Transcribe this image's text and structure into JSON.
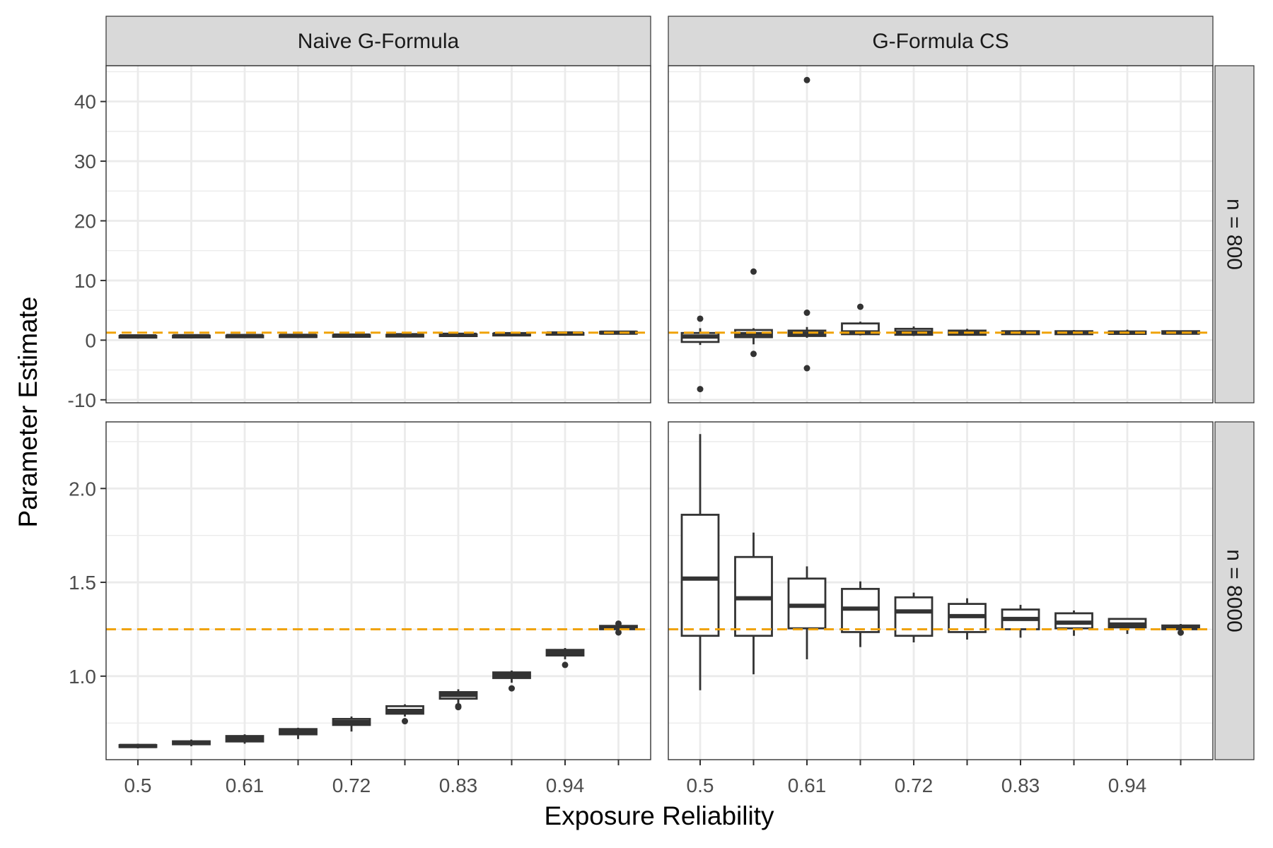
{
  "chart_data": {
    "type": "boxplot",
    "xlabel": "Exposure Reliability",
    "ylabel": "Parameter Estimate",
    "x_categories": [
      0.5,
      0.555,
      0.61,
      0.665,
      0.72,
      0.775,
      0.83,
      0.885,
      0.94,
      0.995
    ],
    "x_tick_labels": [
      "0.5",
      "0.61",
      "0.72",
      "0.83",
      "0.94"
    ],
    "x_tick_label_categories": [
      0,
      2,
      4,
      6,
      8
    ],
    "columns": [
      "Naive G-Formula",
      "G-Formula CS"
    ],
    "rows": [
      "n = 800",
      "n = 8000"
    ],
    "reference_line": {
      "y": 1.25,
      "color": "#f0a30a",
      "style": "dashed"
    },
    "colors": {
      "box_stroke": "#333333",
      "strip_fill": "#d9d9d9",
      "grid": "#ebebeb",
      "reference": "#f0a30a"
    },
    "grid": true,
    "panels": [
      {
        "row": "n = 800",
        "column": "Naive G-Formula",
        "ylim": [
          -10.5,
          46
        ],
        "y_ticks": [
          -10,
          0,
          10,
          20,
          30,
          40
        ],
        "y_tick_labels": [
          "-10",
          "0",
          "10",
          "20",
          "30",
          "40"
        ],
        "boxes": [
          {
            "q1": 0.55,
            "median": 0.63,
            "q3": 0.72,
            "lower_whisker": 0.5,
            "upper_whisker": 0.8,
            "outliers": []
          },
          {
            "q1": 0.6,
            "median": 0.66,
            "q3": 0.75,
            "lower_whisker": 0.55,
            "upper_whisker": 0.85,
            "outliers": []
          },
          {
            "q1": 0.63,
            "median": 0.7,
            "q3": 0.78,
            "lower_whisker": 0.58,
            "upper_whisker": 0.88,
            "outliers": []
          },
          {
            "q1": 0.66,
            "median": 0.73,
            "q3": 0.82,
            "lower_whisker": 0.6,
            "upper_whisker": 0.9,
            "outliers": []
          },
          {
            "q1": 0.7,
            "median": 0.77,
            "q3": 0.86,
            "lower_whisker": 0.64,
            "upper_whisker": 0.95,
            "outliers": []
          },
          {
            "q1": 0.75,
            "median": 0.83,
            "q3": 0.9,
            "lower_whisker": 0.68,
            "upper_whisker": 1.0,
            "outliers": []
          },
          {
            "q1": 0.82,
            "median": 0.9,
            "q3": 0.98,
            "lower_whisker": 0.75,
            "upper_whisker": 1.08,
            "outliers": []
          },
          {
            "q1": 0.92,
            "median": 1.0,
            "q3": 1.08,
            "lower_whisker": 0.85,
            "upper_whisker": 1.15,
            "outliers": []
          },
          {
            "q1": 1.05,
            "median": 1.12,
            "q3": 1.2,
            "lower_whisker": 1.0,
            "upper_whisker": 1.28,
            "outliers": []
          },
          {
            "q1": 1.15,
            "median": 1.25,
            "q3": 1.4,
            "lower_whisker": 1.1,
            "upper_whisker": 1.5,
            "outliers": []
          }
        ]
      },
      {
        "row": "n = 800",
        "column": "G-Formula CS",
        "ylim": [
          -10.5,
          46
        ],
        "y_ticks": [
          -10,
          0,
          10,
          20,
          30,
          40
        ],
        "y_tick_labels": [],
        "boxes": [
          {
            "q1": -0.3,
            "median": 0.6,
            "q3": 1.2,
            "lower_whisker": -0.8,
            "upper_whisker": 2.0,
            "outliers": [
              3.6,
              -8.2
            ]
          },
          {
            "q1": 0.5,
            "median": 1.0,
            "q3": 1.7,
            "lower_whisker": -0.7,
            "upper_whisker": 2.0,
            "outliers": [
              11.5,
              -2.3
            ]
          },
          {
            "q1": 0.7,
            "median": 1.1,
            "q3": 1.6,
            "lower_whisker": 0.4,
            "upper_whisker": 2.2,
            "outliers": [
              43.6,
              4.6,
              -4.7
            ]
          },
          {
            "q1": 1.0,
            "median": 1.3,
            "q3": 2.8,
            "lower_whisker": 0.8,
            "upper_whisker": 3.1,
            "outliers": [
              5.6
            ]
          },
          {
            "q1": 0.9,
            "median": 1.3,
            "q3": 1.9,
            "lower_whisker": 0.7,
            "upper_whisker": 2.3,
            "outliers": []
          },
          {
            "q1": 0.9,
            "median": 1.25,
            "q3": 1.6,
            "lower_whisker": 0.8,
            "upper_whisker": 1.9,
            "outliers": []
          },
          {
            "q1": 1.0,
            "median": 1.25,
            "q3": 1.5,
            "lower_whisker": 0.9,
            "upper_whisker": 1.7,
            "outliers": []
          },
          {
            "q1": 1.0,
            "median": 1.25,
            "q3": 1.5,
            "lower_whisker": 0.9,
            "upper_whisker": 1.7,
            "outliers": []
          },
          {
            "q1": 1.05,
            "median": 1.25,
            "q3": 1.45,
            "lower_whisker": 0.95,
            "upper_whisker": 1.75,
            "outliers": []
          },
          {
            "q1": 1.1,
            "median": 1.25,
            "q3": 1.5,
            "lower_whisker": 1.0,
            "upper_whisker": 1.6,
            "outliers": []
          }
        ]
      },
      {
        "row": "n = 8000",
        "column": "Naive G-Formula",
        "ylim": [
          0.555,
          2.355
        ],
        "y_ticks": [
          1.0,
          1.5,
          2.0
        ],
        "y_tick_labels": [
          "1.0",
          "1.5",
          "2.0"
        ],
        "boxes": [
          {
            "q1": 0.622,
            "median": 0.628,
            "q3": 0.633,
            "lower_whisker": 0.615,
            "upper_whisker": 0.64,
            "outliers": []
          },
          {
            "q1": 0.637,
            "median": 0.645,
            "q3": 0.653,
            "lower_whisker": 0.627,
            "upper_whisker": 0.662,
            "outliers": []
          },
          {
            "q1": 0.652,
            "median": 0.667,
            "q3": 0.681,
            "lower_whisker": 0.64,
            "upper_whisker": 0.69,
            "outliers": []
          },
          {
            "q1": 0.69,
            "median": 0.705,
            "q3": 0.718,
            "lower_whisker": 0.665,
            "upper_whisker": 0.725,
            "outliers": []
          },
          {
            "q1": 0.74,
            "median": 0.755,
            "q3": 0.772,
            "lower_whisker": 0.705,
            "upper_whisker": 0.785,
            "outliers": []
          },
          {
            "q1": 0.8,
            "median": 0.815,
            "q3": 0.84,
            "lower_whisker": 0.785,
            "upper_whisker": 0.85,
            "outliers": [
              0.76
            ]
          },
          {
            "q1": 0.88,
            "median": 0.9,
            "q3": 0.915,
            "lower_whisker": 0.855,
            "upper_whisker": 0.93,
            "outliers": [
              0.84,
              0.835
            ]
          },
          {
            "q1": 0.99,
            "median": 1.005,
            "q3": 1.02,
            "lower_whisker": 0.965,
            "upper_whisker": 1.03,
            "outliers": [
              0.935
            ]
          },
          {
            "q1": 1.11,
            "median": 1.125,
            "q3": 1.14,
            "lower_whisker": 1.09,
            "upper_whisker": 1.15,
            "outliers": [
              1.06
            ]
          },
          {
            "q1": 1.25,
            "median": 1.258,
            "q3": 1.268,
            "lower_whisker": 1.243,
            "upper_whisker": 1.275,
            "outliers": [
              1.233,
              1.28
            ]
          }
        ]
      },
      {
        "row": "n = 8000",
        "column": "G-Formula CS",
        "ylim": [
          0.555,
          2.355
        ],
        "y_ticks": [
          1.0,
          1.5,
          2.0
        ],
        "y_tick_labels": [],
        "boxes": [
          {
            "q1": 1.215,
            "median": 1.52,
            "q3": 1.86,
            "lower_whisker": 0.925,
            "upper_whisker": 2.29,
            "outliers": []
          },
          {
            "q1": 1.215,
            "median": 1.415,
            "q3": 1.635,
            "lower_whisker": 1.01,
            "upper_whisker": 1.765,
            "outliers": []
          },
          {
            "q1": 1.255,
            "median": 1.375,
            "q3": 1.52,
            "lower_whisker": 1.09,
            "upper_whisker": 1.585,
            "outliers": []
          },
          {
            "q1": 1.235,
            "median": 1.36,
            "q3": 1.465,
            "lower_whisker": 1.155,
            "upper_whisker": 1.505,
            "outliers": []
          },
          {
            "q1": 1.215,
            "median": 1.345,
            "q3": 1.42,
            "lower_whisker": 1.18,
            "upper_whisker": 1.445,
            "outliers": []
          },
          {
            "q1": 1.235,
            "median": 1.32,
            "q3": 1.385,
            "lower_whisker": 1.195,
            "upper_whisker": 1.415,
            "outliers": []
          },
          {
            "q1": 1.25,
            "median": 1.305,
            "q3": 1.355,
            "lower_whisker": 1.205,
            "upper_whisker": 1.38,
            "outliers": []
          },
          {
            "q1": 1.255,
            "median": 1.285,
            "q3": 1.335,
            "lower_whisker": 1.215,
            "upper_whisker": 1.35,
            "outliers": []
          },
          {
            "q1": 1.26,
            "median": 1.275,
            "q3": 1.305,
            "lower_whisker": 1.225,
            "upper_whisker": 1.31,
            "outliers": []
          },
          {
            "q1": 1.25,
            "median": 1.262,
            "q3": 1.27,
            "lower_whisker": 1.24,
            "upper_whisker": 1.278,
            "outliers": [
              1.232
            ]
          }
        ]
      }
    ]
  }
}
